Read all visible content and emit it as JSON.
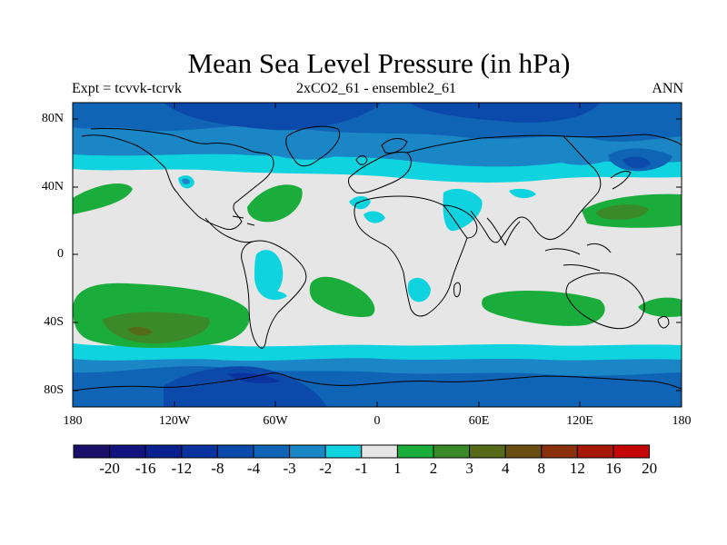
{
  "title": "Mean Sea Level Pressure (in hPa)",
  "subtitle_left": "Expt = tcvvk-tcrvk",
  "subtitle_center": "2xCO2_61 - ensemble2_61",
  "subtitle_right": "ANN",
  "lat_labels": [
    "80N",
    "40N",
    "0",
    "40S",
    "80S"
  ],
  "lon_labels": [
    "180",
    "120W",
    "60W",
    "0",
    "60E",
    "120E",
    "180"
  ],
  "colorbar": {
    "colors": [
      "#1a0f6b",
      "#12137e",
      "#0b208f",
      "#0a33a0",
      "#0b4aab",
      "#0f64b5",
      "#1a86c6",
      "#0fd4e0",
      "#e6e6e6",
      "#1aad3c",
      "#3b8a2a",
      "#556b1a",
      "#6b4e12",
      "#8a300c",
      "#a81808",
      "#c50606"
    ],
    "labels": [
      "-20",
      "-16",
      "-12",
      "-8",
      "-4",
      "-3",
      "-2",
      "-1",
      "1",
      "2",
      "3",
      "4",
      "8",
      "12",
      "16",
      "20"
    ]
  },
  "map": {
    "background": "#e6e6e6",
    "coastline_color": "#000000"
  }
}
